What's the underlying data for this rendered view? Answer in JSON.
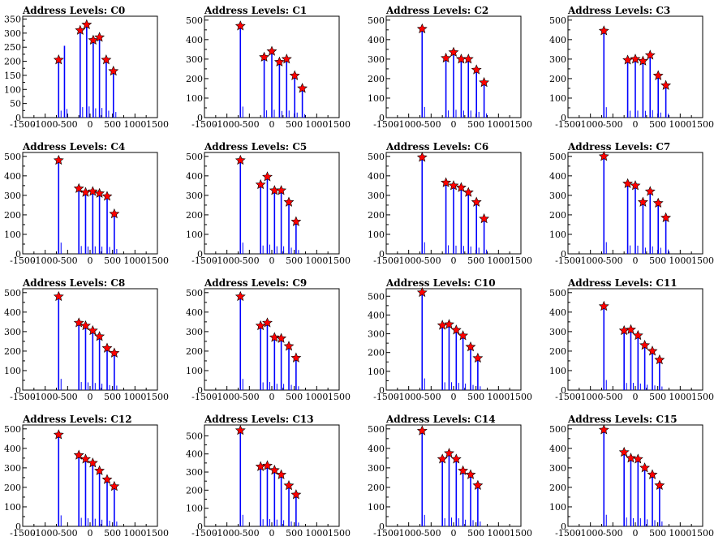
{
  "chart_data": {
    "type": "bar",
    "xlim": [
      -1500,
      1500
    ],
    "x_ticks": [
      -1500,
      -1000,
      -500,
      0,
      500,
      1000,
      1500
    ],
    "x_tick_labels": [
      "-1500",
      "-1000",
      "-500",
      "0",
      "500",
      "1000",
      "1500"
    ],
    "bar_color": "#0000ff",
    "marker_color": "#ff0000",
    "panels": [
      {
        "title": "Address Levels: C0",
        "ylim": [
          0,
          360
        ],
        "y_ticks": [
          0,
          50,
          100,
          150,
          200,
          250,
          300,
          350
        ],
        "y_tick_labels": [
          "0",
          "50",
          "100",
          "150",
          "200",
          "250",
          "300",
          "350"
        ],
        "x": [
          -700,
          -570,
          -220,
          -75,
          70,
          210,
          360,
          520
        ],
        "values": [
          205,
          255,
          310,
          330,
          275,
          285,
          205,
          165
        ],
        "markers": [
          205,
          null,
          310,
          330,
          275,
          285,
          205,
          165
        ]
      },
      {
        "title": "Address Levels: C1",
        "ylim": [
          0,
          520
        ],
        "y_ticks": [
          0,
          100,
          200,
          300,
          400,
          500
        ],
        "y_tick_labels": [
          "0",
          "100",
          "200",
          "300",
          "400",
          "500"
        ],
        "x": [
          -700,
          -170,
          0,
          170,
          330,
          510,
          680
        ],
        "values": [
          470,
          310,
          340,
          285,
          300,
          215,
          150
        ],
        "markers": [
          470,
          310,
          340,
          285,
          300,
          215,
          150
        ]
      },
      {
        "title": "Address Levels: C2",
        "ylim": [
          0,
          520
        ],
        "y_ticks": [
          0,
          100,
          200,
          300,
          400,
          500
        ],
        "y_tick_labels": [
          "0",
          "100",
          "200",
          "300",
          "400",
          "500"
        ],
        "x": [
          -700,
          -170,
          0,
          170,
          330,
          510,
          680
        ],
        "values": [
          455,
          305,
          335,
          300,
          300,
          245,
          180
        ],
        "markers": [
          455,
          305,
          335,
          300,
          300,
          245,
          180
        ]
      },
      {
        "title": "Address Levels: C3",
        "ylim": [
          0,
          520
        ],
        "y_ticks": [
          0,
          100,
          200,
          300,
          400,
          500
        ],
        "y_tick_labels": [
          "0",
          "100",
          "200",
          "300",
          "400",
          "500"
        ],
        "x": [
          -700,
          -170,
          0,
          170,
          330,
          510,
          680
        ],
        "values": [
          445,
          295,
          300,
          290,
          320,
          215,
          165
        ],
        "markers": [
          445,
          295,
          300,
          290,
          320,
          215,
          165
        ]
      },
      {
        "title": "Address Levels: C4",
        "ylim": [
          0,
          520
        ],
        "y_ticks": [
          0,
          100,
          200,
          300,
          400,
          500
        ],
        "y_tick_labels": [
          "0",
          "100",
          "200",
          "300",
          "400",
          "500"
        ],
        "x": [
          -700,
          -250,
          -100,
          60,
          210,
          380,
          540
        ],
        "values": [
          480,
          335,
          315,
          320,
          310,
          295,
          205
        ],
        "markers": [
          480,
          335,
          315,
          320,
          310,
          295,
          205
        ]
      },
      {
        "title": "Address Levels: C5",
        "ylim": [
          0,
          520
        ],
        "y_ticks": [
          0,
          100,
          200,
          300,
          400,
          500
        ],
        "y_tick_labels": [
          "0",
          "100",
          "200",
          "300",
          "400",
          "500"
        ],
        "x": [
          -700,
          -250,
          -100,
          60,
          210,
          380,
          540
        ],
        "values": [
          480,
          355,
          395,
          325,
          325,
          265,
          165
        ],
        "markers": [
          480,
          355,
          395,
          325,
          325,
          265,
          165
        ]
      },
      {
        "title": "Address Levels: C6",
        "ylim": [
          0,
          520
        ],
        "y_ticks": [
          0,
          100,
          200,
          300,
          400,
          500
        ],
        "y_tick_labels": [
          "0",
          "100",
          "200",
          "300",
          "400",
          "500"
        ],
        "x": [
          -700,
          -170,
          0,
          170,
          330,
          510,
          680
        ],
        "values": [
          495,
          365,
          350,
          340,
          315,
          265,
          180
        ],
        "markers": [
          495,
          365,
          350,
          340,
          315,
          265,
          180
        ]
      },
      {
        "title": "Address Levels: C7",
        "ylim": [
          0,
          520
        ],
        "y_ticks": [
          0,
          100,
          200,
          300,
          400,
          500
        ],
        "y_tick_labels": [
          "0",
          "100",
          "200",
          "300",
          "400",
          "500"
        ],
        "x": [
          -700,
          -170,
          0,
          170,
          330,
          510,
          680
        ],
        "values": [
          500,
          360,
          350,
          265,
          320,
          260,
          185
        ],
        "markers": [
          500,
          360,
          350,
          265,
          320,
          260,
          185
        ]
      },
      {
        "title": "Address Levels: C8",
        "ylim": [
          0,
          520
        ],
        "y_ticks": [
          0,
          100,
          200,
          300,
          400,
          500
        ],
        "y_tick_labels": [
          "0",
          "100",
          "200",
          "300",
          "400",
          "500"
        ],
        "x": [
          -700,
          -250,
          -100,
          60,
          210,
          380,
          540
        ],
        "values": [
          480,
          345,
          330,
          305,
          275,
          215,
          190
        ],
        "markers": [
          480,
          345,
          330,
          305,
          275,
          215,
          190
        ]
      },
      {
        "title": "Address Levels: C9",
        "ylim": [
          0,
          520
        ],
        "y_ticks": [
          0,
          100,
          200,
          300,
          400,
          500
        ],
        "y_tick_labels": [
          "0",
          "100",
          "200",
          "300",
          "400",
          "500"
        ],
        "x": [
          -700,
          -250,
          -100,
          60,
          210,
          380,
          540
        ],
        "values": [
          480,
          330,
          345,
          270,
          265,
          225,
          165
        ],
        "markers": [
          480,
          330,
          345,
          270,
          265,
          225,
          165
        ]
      },
      {
        "title": "Address Levels: C10",
        "ylim": [
          0,
          540
        ],
        "y_ticks": [
          0,
          100,
          200,
          300,
          400,
          500
        ],
        "y_tick_labels": [
          "0",
          "100",
          "200",
          "300",
          "400",
          "500"
        ],
        "x": [
          -700,
          -250,
          -100,
          60,
          210,
          380,
          540
        ],
        "values": [
          520,
          345,
          350,
          320,
          290,
          230,
          170
        ],
        "markers": [
          520,
          345,
          350,
          320,
          290,
          230,
          170
        ]
      },
      {
        "title": "Address Levels: C11",
        "ylim": [
          0,
          520
        ],
        "y_ticks": [
          0,
          100,
          200,
          300,
          400,
          500
        ],
        "y_tick_labels": [
          "0",
          "100",
          "200",
          "300",
          "400",
          "500"
        ],
        "x": [
          -700,
          -250,
          -100,
          60,
          210,
          380,
          540
        ],
        "values": [
          430,
          305,
          310,
          280,
          230,
          200,
          155
        ],
        "markers": [
          430,
          305,
          310,
          280,
          230,
          200,
          155
        ]
      },
      {
        "title": "Address Levels: C12",
        "ylim": [
          0,
          520
        ],
        "y_ticks": [
          0,
          100,
          200,
          300,
          400,
          500
        ],
        "y_tick_labels": [
          "0",
          "100",
          "200",
          "300",
          "400",
          "500"
        ],
        "x": [
          -700,
          -250,
          -100,
          60,
          210,
          380,
          540
        ],
        "values": [
          470,
          365,
          345,
          325,
          285,
          240,
          205
        ],
        "markers": [
          470,
          365,
          345,
          325,
          285,
          240,
          205
        ]
      },
      {
        "title": "Address Levels: C13",
        "ylim": [
          0,
          560
        ],
        "y_ticks": [
          0,
          100,
          200,
          300,
          400,
          500
        ],
        "y_tick_labels": [
          "0",
          "100",
          "200",
          "300",
          "400",
          "500"
        ],
        "x": [
          -700,
          -250,
          -100,
          60,
          210,
          380,
          540
        ],
        "values": [
          530,
          330,
          335,
          310,
          285,
          225,
          175
        ],
        "markers": [
          530,
          330,
          335,
          310,
          285,
          225,
          175
        ]
      },
      {
        "title": "Address Levels: C14",
        "ylim": [
          0,
          520
        ],
        "y_ticks": [
          0,
          100,
          200,
          300,
          400,
          500
        ],
        "y_tick_labels": [
          "0",
          "100",
          "200",
          "300",
          "400",
          "500"
        ],
        "x": [
          -700,
          -250,
          -100,
          60,
          210,
          380,
          540
        ],
        "values": [
          490,
          345,
          375,
          345,
          285,
          265,
          210
        ],
        "markers": [
          490,
          345,
          375,
          345,
          285,
          265,
          210
        ]
      },
      {
        "title": "Address Levels: C15",
        "ylim": [
          0,
          520
        ],
        "y_ticks": [
          0,
          100,
          200,
          300,
          400,
          500
        ],
        "y_tick_labels": [
          "0",
          "100",
          "200",
          "300",
          "400",
          "500"
        ],
        "x": [
          -700,
          -250,
          -100,
          60,
          210,
          380,
          540
        ],
        "values": [
          495,
          380,
          350,
          345,
          300,
          265,
          210
        ],
        "markers": [
          495,
          380,
          350,
          345,
          300,
          265,
          210
        ]
      }
    ]
  }
}
